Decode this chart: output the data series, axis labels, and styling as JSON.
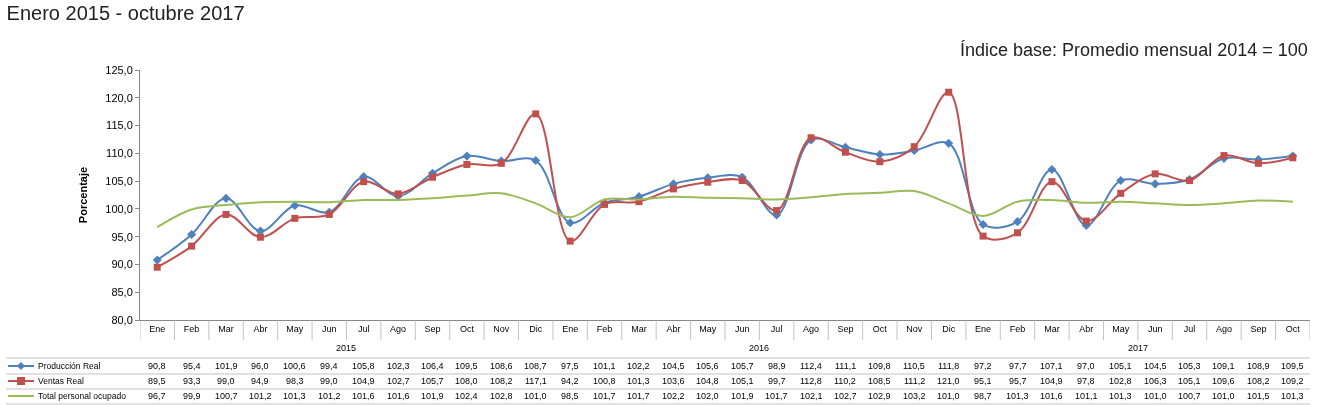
{
  "chart_data": {
    "type": "line",
    "title": "Enero 2015 - octubre 2017",
    "subtitle": "Índice base: Promedio mensual 2014 = 100",
    "ylabel": "Porcentaje",
    "categories": [
      "Ene",
      "Feb",
      "Mar",
      "Abr",
      "May",
      "Jun",
      "Jul",
      "Ago",
      "Sep",
      "Oct",
      "Nov",
      "Dic",
      "Ene",
      "Feb",
      "Mar",
      "Abr",
      "May",
      "Jun",
      "Jul",
      "Ago",
      "Sep",
      "Oct",
      "Nov",
      "Dic",
      "Ene",
      "Feb",
      "Mar",
      "Abr",
      "May",
      "Jun",
      "Jul",
      "Ago",
      "Sep",
      "Oct"
    ],
    "annotations": [
      "2015",
      "2016",
      "2017"
    ],
    "series": [
      {
        "name": "Producción Real",
        "color": "#4f81bd",
        "marker": "diamond",
        "values": [
          90.8,
          95.4,
          101.9,
          96.0,
          100.6,
          99.4,
          105.8,
          102.3,
          106.4,
          109.5,
          108.6,
          108.7,
          97.5,
          101.1,
          102.2,
          104.5,
          105.6,
          105.7,
          98.9,
          112.4,
          111.1,
          109.8,
          110.5,
          111.8,
          97.2,
          97.7,
          107.1,
          97.0,
          105.1,
          104.5,
          105.3,
          109.1,
          108.9,
          109.5
        ],
        "value_labels": [
          "90,8",
          "95,4",
          "101,9",
          "96,0",
          "100,6",
          "99,4",
          "105,8",
          "102,3",
          "106,4",
          "109,5",
          "108,6",
          "108,7",
          "97,5",
          "101,1",
          "102,2",
          "104,5",
          "105,6",
          "105,7",
          "98,9",
          "112,4",
          "111,1",
          "109,8",
          "110,5",
          "111,8",
          "97,2",
          "97,7",
          "107,1",
          "97,0",
          "105,1",
          "104,5",
          "105,3",
          "109,1",
          "108,9",
          "109,5"
        ]
      },
      {
        "name": "Ventas Real",
        "color": "#c0504d",
        "marker": "square",
        "values": [
          89.5,
          93.3,
          99.0,
          94.9,
          98.3,
          99.0,
          104.9,
          102.7,
          105.7,
          108.0,
          108.2,
          117.1,
          94.2,
          100.8,
          101.3,
          103.6,
          104.8,
          105.1,
          99.7,
          112.8,
          110.2,
          108.5,
          111.2,
          121.0,
          95.1,
          95.7,
          104.9,
          97.8,
          102.8,
          106.3,
          105.1,
          109.6,
          108.2,
          109.2
        ],
        "value_labels": [
          "89,5",
          "93,3",
          "99,0",
          "94,9",
          "98,3",
          "99,0",
          "104,9",
          "102,7",
          "105,7",
          "108,0",
          "108,2",
          "117,1",
          "94,2",
          "100,8",
          "101,3",
          "103,6",
          "104,8",
          "105,1",
          "99,7",
          "112,8",
          "110,2",
          "108,5",
          "111,2",
          "121,0",
          "95,1",
          "95,7",
          "104,9",
          "97,8",
          "102,8",
          "106,3",
          "105,1",
          "109,6",
          "108,2",
          "109,2"
        ]
      },
      {
        "name": "Total personal ocupado",
        "color": "#9bbb59",
        "marker": "none",
        "values": [
          96.7,
          99.9,
          100.7,
          101.2,
          101.3,
          101.2,
          101.6,
          101.6,
          101.9,
          102.4,
          102.8,
          101.0,
          98.5,
          101.7,
          101.7,
          102.2,
          102.0,
          101.9,
          101.7,
          102.1,
          102.7,
          102.9,
          103.2,
          101.0,
          98.7,
          101.3,
          101.6,
          101.1,
          101.3,
          101.0,
          100.7,
          101.0,
          101.5,
          101.3
        ],
        "value_labels": [
          "96,7",
          "99,9",
          "100,7",
          "101,2",
          "101,3",
          "101,2",
          "101,6",
          "101,6",
          "101,9",
          "102,4",
          "102,8",
          "101,0",
          "98,5",
          "101,7",
          "101,7",
          "102,2",
          "102,0",
          "101,9",
          "101,7",
          "102,1",
          "102,7",
          "102,9",
          "103,2",
          "101,0",
          "98,7",
          "101,3",
          "101,6",
          "101,1",
          "101,3",
          "101,0",
          "100,7",
          "101,0",
          "101,5",
          "101,3"
        ]
      }
    ],
    "ylim": [
      80,
      125
    ],
    "yticks": [
      {
        "value": 80,
        "label": "80,0"
      },
      {
        "value": 85,
        "label": "85,0"
      },
      {
        "value": 90,
        "label": "90,0"
      },
      {
        "value": 95,
        "label": "95,0"
      },
      {
        "value": 100,
        "label": "100,0"
      },
      {
        "value": 105,
        "label": "105,0"
      },
      {
        "value": 110,
        "label": "110,0"
      },
      {
        "value": 115,
        "label": "115,0"
      },
      {
        "value": 120,
        "label": "120,0"
      },
      {
        "value": 125,
        "label": "125,0"
      }
    ],
    "legend": "bottom left",
    "line_style": "solid"
  }
}
